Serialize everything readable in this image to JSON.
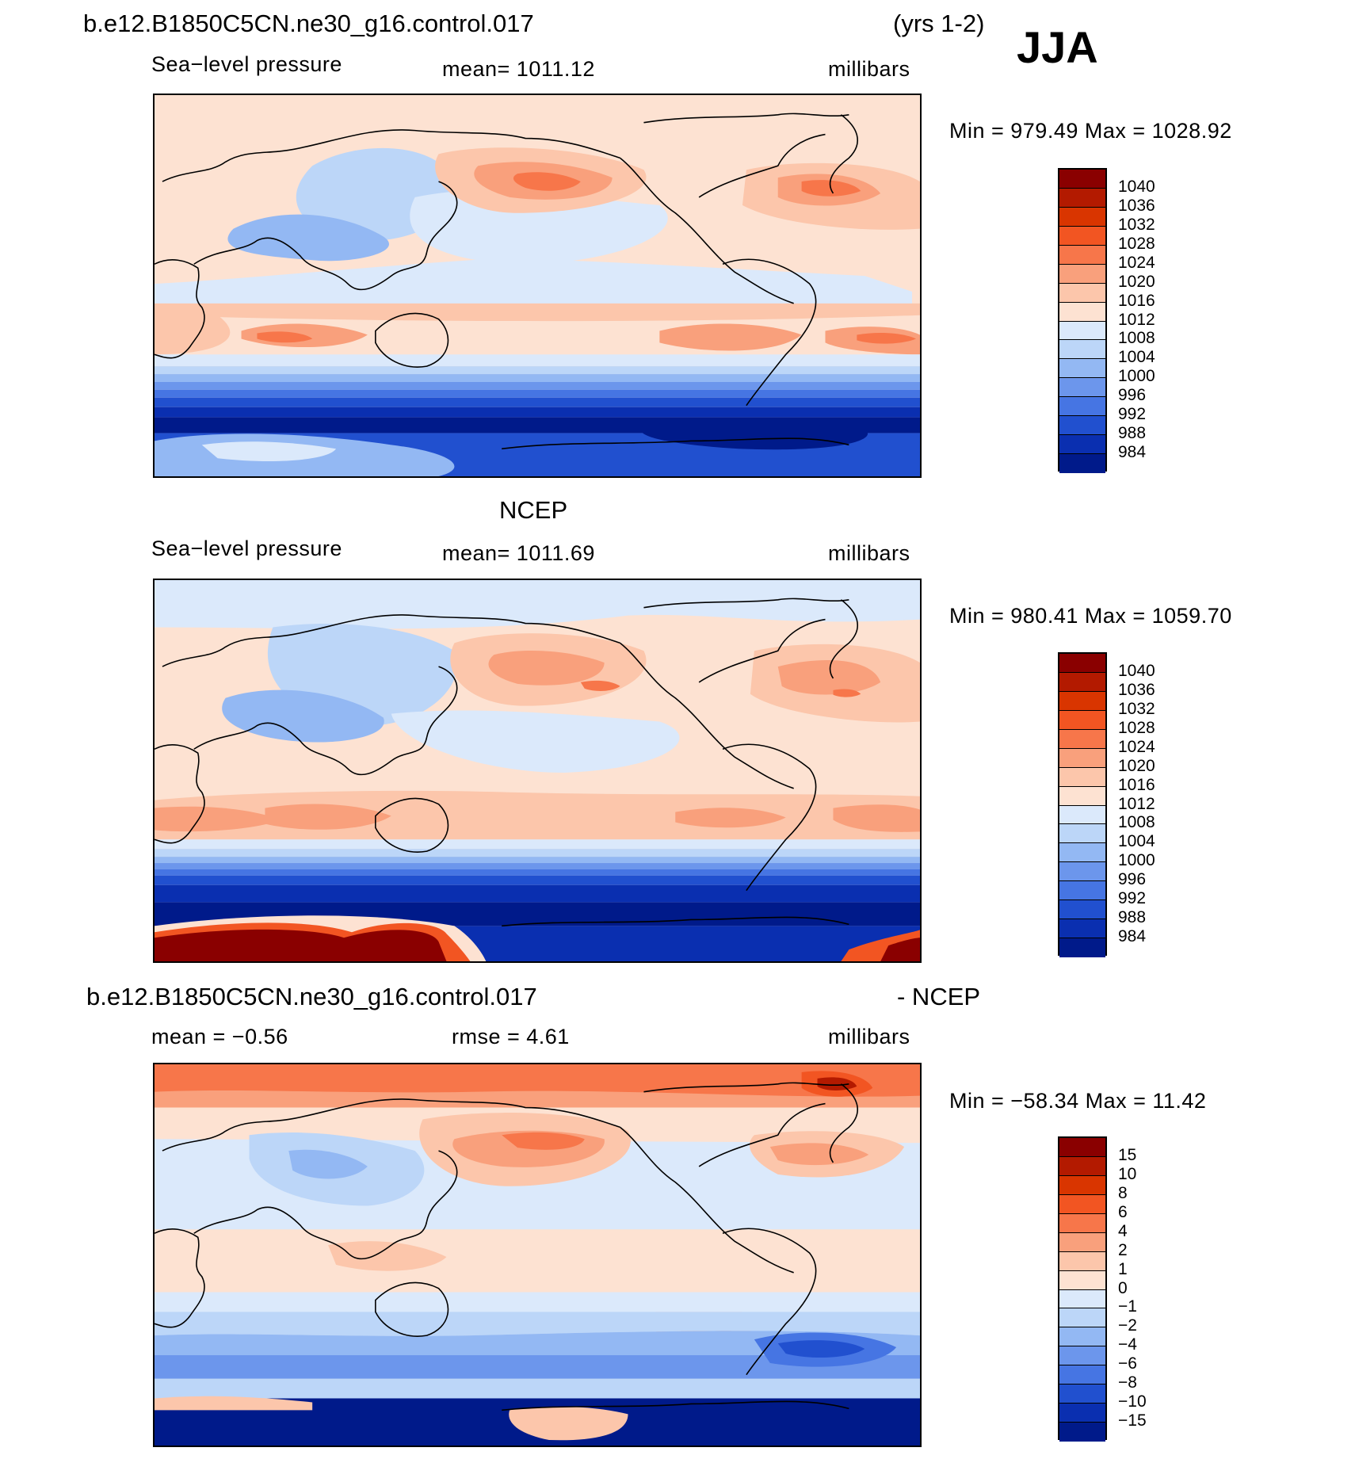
{
  "season": "JJA",
  "case_name": "b.e12.B1850C5CN.ne30_g16.control.017",
  "years": "(yrs 1-2)",
  "panels": [
    {
      "title": "",
      "variable": "Sea−level pressure",
      "mean_text": "mean=  1011.12",
      "units": "millibars",
      "minmax_text": "Min  =  979.49  Max  =  1028.92"
    },
    {
      "title": "NCEP",
      "variable": "Sea−level pressure",
      "mean_text": "mean=  1011.69",
      "units": "millibars",
      "minmax_text": "Min  =  980.41  Max  =  1059.70"
    },
    {
      "title_left": "b.e12.B1850C5CN.ne30_g16.control.017",
      "title_right": "- NCEP",
      "mean_text": "mean  =    −0.56",
      "rmse_text": "rmse  =     4.61",
      "units": "millibars",
      "minmax_text": "Min  =  −58.34  Max  =    11.42"
    }
  ],
  "chart_data": [
    {
      "type": "heatmap",
      "title": "b.e12.B1850C5CN.ne30_g16.control.017 (yrs 1-2) JJA",
      "variable": "Sea-level pressure",
      "units": "millibars",
      "mean": 1011.12,
      "min": 979.49,
      "max": 1028.92,
      "contour_levels": [
        1040,
        1036,
        1032,
        1028,
        1024,
        1020,
        1016,
        1012,
        1008,
        1004,
        1000,
        996,
        992,
        988,
        984
      ],
      "colors": [
        "#8a0000",
        "#b31a00",
        "#d93500",
        "#f25522",
        "#f7764a",
        "#f9a07c",
        "#fcc6ab",
        "#fde2d2",
        "#dbe9fb",
        "#bcd6f8",
        "#93b8f3",
        "#6c96ec",
        "#4675e3",
        "#2150cf",
        "#0a2fb0",
        "#001a8a"
      ]
    },
    {
      "type": "heatmap",
      "title": "NCEP",
      "variable": "Sea-level pressure",
      "units": "millibars",
      "mean": 1011.69,
      "min": 980.41,
      "max": 1059.7,
      "contour_levels": [
        1040,
        1036,
        1032,
        1028,
        1024,
        1020,
        1016,
        1012,
        1008,
        1004,
        1000,
        996,
        992,
        988,
        984
      ],
      "colors": [
        "#8a0000",
        "#b31a00",
        "#d93500",
        "#f25522",
        "#f7764a",
        "#f9a07c",
        "#fcc6ab",
        "#fde2d2",
        "#dbe9fb",
        "#bcd6f8",
        "#93b8f3",
        "#6c96ec",
        "#4675e3",
        "#2150cf",
        "#0a2fb0",
        "#001a8a"
      ]
    },
    {
      "type": "heatmap",
      "title": "b.e12.B1850C5CN.ne30_g16.control.017 - NCEP",
      "variable": "Sea-level pressure difference",
      "units": "millibars",
      "mean": -0.56,
      "rmse": 4.61,
      "min": -58.34,
      "max": 11.42,
      "contour_levels": [
        15,
        10,
        8,
        6,
        4,
        2,
        1,
        0,
        -1,
        -2,
        -4,
        -6,
        -8,
        -10,
        -15
      ],
      "contour_labels": [
        "15",
        "10",
        "8",
        "6",
        "4",
        "2",
        "1",
        "0",
        "−1",
        "−2",
        "−4",
        "−6",
        "−8",
        "−10",
        "−15"
      ],
      "colors": [
        "#8a0000",
        "#b31a00",
        "#d93500",
        "#f25522",
        "#f7764a",
        "#f9a07c",
        "#fcc6ab",
        "#fde2d2",
        "#dbe9fb",
        "#bcd6f8",
        "#93b8f3",
        "#6c96ec",
        "#4675e3",
        "#2150cf",
        "#0a2fb0",
        "#001a8a"
      ]
    }
  ]
}
